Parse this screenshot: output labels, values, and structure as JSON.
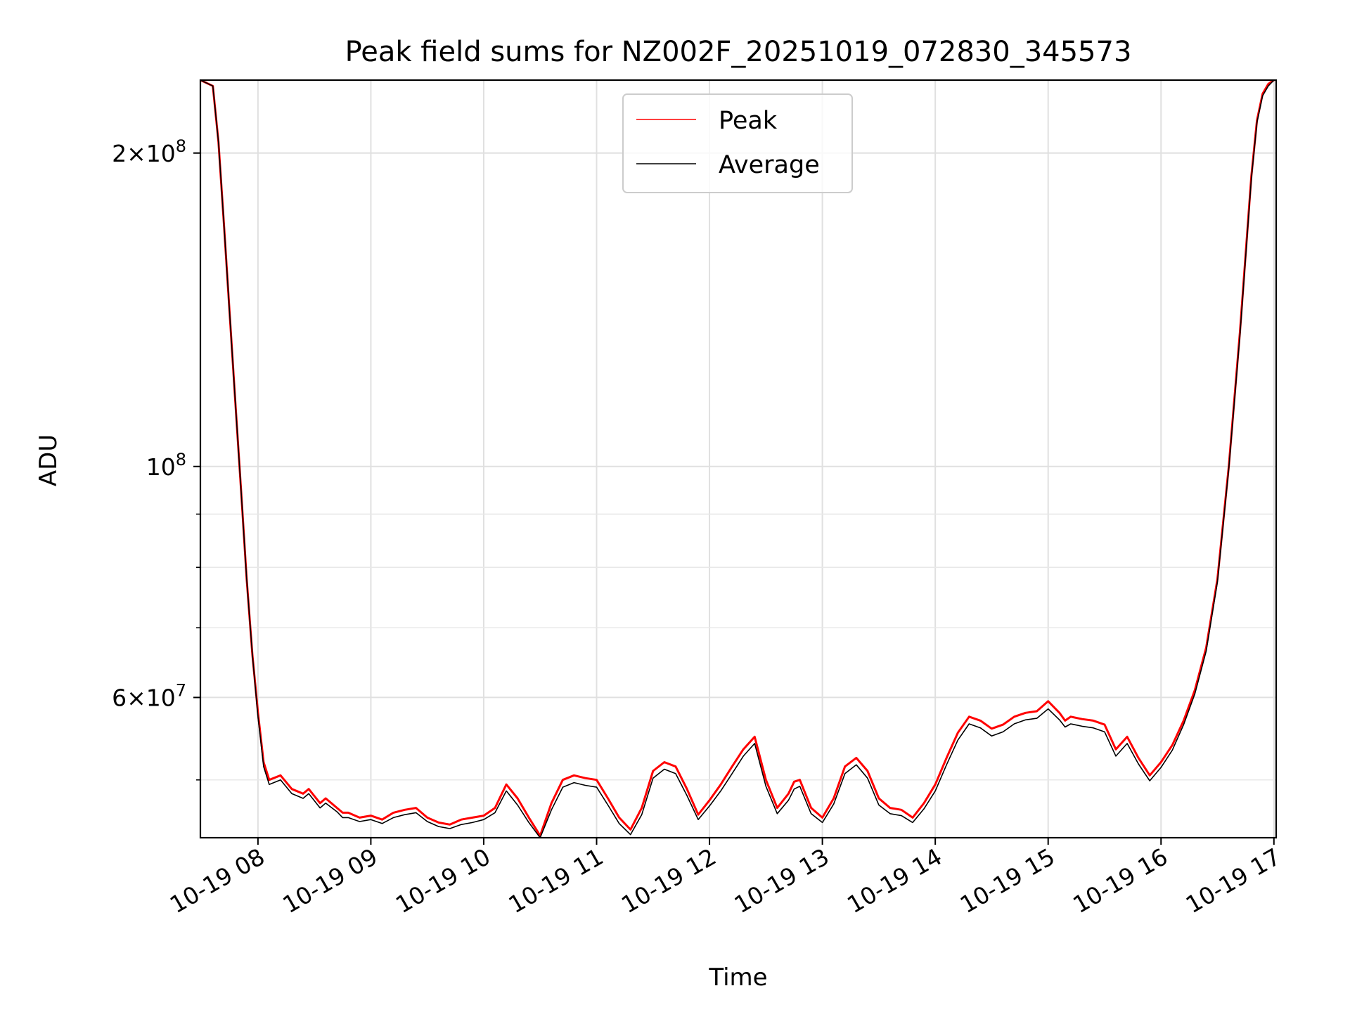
{
  "chart_data": {
    "type": "line",
    "title": "Peak field sums for NZ002F_20251019_072830_345573",
    "xlabel": "Time",
    "ylabel": "ADU",
    "y_scale": "log",
    "ylim": [
      44000000,
      235000000
    ],
    "xlim_hours": [
      7.49,
      17.02
    ],
    "grid": true,
    "legend_position": "top-center",
    "x_ticks": [
      {
        "hour": 8,
        "label": "10-19 08"
      },
      {
        "hour": 9,
        "label": "10-19 09"
      },
      {
        "hour": 10,
        "label": "10-19 10"
      },
      {
        "hour": 11,
        "label": "10-19 11"
      },
      {
        "hour": 12,
        "label": "10-19 12"
      },
      {
        "hour": 13,
        "label": "10-19 13"
      },
      {
        "hour": 14,
        "label": "10-19 14"
      },
      {
        "hour": 15,
        "label": "10-19 15"
      },
      {
        "hour": 16,
        "label": "10-19 16"
      },
      {
        "hour": 17,
        "label": "10-19 17"
      }
    ],
    "y_major_ticks": [
      {
        "value": 60000000,
        "base": "6",
        "exp": "7"
      },
      {
        "value": 100000000,
        "base": "",
        "exp": "8"
      },
      {
        "value": 200000000,
        "base": "2",
        "exp": "8"
      }
    ],
    "y_minor_ticks": [
      50000000,
      70000000,
      80000000,
      90000000
    ],
    "series": [
      {
        "name": "Peak",
        "color": "#ff0000",
        "x_hours": [
          7.49,
          7.6,
          7.65,
          7.7,
          7.75,
          7.8,
          7.85,
          7.9,
          7.95,
          8.0,
          8.05,
          8.1,
          8.2,
          8.3,
          8.4,
          8.45,
          8.55,
          8.6,
          8.7,
          8.75,
          8.8,
          8.9,
          9.0,
          9.1,
          9.2,
          9.3,
          9.4,
          9.5,
          9.6,
          9.7,
          9.8,
          9.9,
          10.0,
          10.1,
          10.2,
          10.3,
          10.4,
          10.5,
          10.6,
          10.7,
          10.8,
          10.9,
          11.0,
          11.1,
          11.2,
          11.3,
          11.4,
          11.5,
          11.6,
          11.7,
          11.8,
          11.9,
          12.0,
          12.1,
          12.2,
          12.3,
          12.4,
          12.5,
          12.6,
          12.7,
          12.75,
          12.8,
          12.9,
          13.0,
          13.1,
          13.2,
          13.3,
          13.4,
          13.5,
          13.6,
          13.7,
          13.8,
          13.9,
          14.0,
          14.1,
          14.2,
          14.3,
          14.4,
          14.5,
          14.6,
          14.7,
          14.8,
          14.9,
          15.0,
          15.1,
          15.15,
          15.2,
          15.3,
          15.4,
          15.5,
          15.6,
          15.7,
          15.8,
          15.9,
          16.0,
          16.1,
          16.2,
          16.3,
          16.4,
          16.5,
          16.6,
          16.7,
          16.8,
          16.85,
          16.9,
          16.95,
          17.0
        ],
        "values": [
          235000000,
          232000000,
          205000000,
          170000000,
          140000000,
          115000000,
          95000000,
          78000000,
          66000000,
          58000000,
          52000000,
          50000000,
          50500000,
          49000000,
          48500000,
          49000000,
          47500000,
          48000000,
          47000000,
          46500000,
          46500000,
          46000000,
          46200000,
          45800000,
          46500000,
          46800000,
          47000000,
          46000000,
          45500000,
          45300000,
          45800000,
          46000000,
          46200000,
          47000000,
          49500000,
          48000000,
          46000000,
          44200000,
          47500000,
          50000000,
          50500000,
          50200000,
          50000000,
          48000000,
          46000000,
          44800000,
          47000000,
          51000000,
          52000000,
          51500000,
          49000000,
          46300000,
          47800000,
          49500000,
          51500000,
          53500000,
          55000000,
          50000000,
          47000000,
          48500000,
          49800000,
          50000000,
          47000000,
          46000000,
          48000000,
          51500000,
          52500000,
          51000000,
          48000000,
          47000000,
          46800000,
          46000000,
          47500000,
          49500000,
          52500000,
          55500000,
          57500000,
          57000000,
          56000000,
          56500000,
          57500000,
          58000000,
          58200000,
          59500000,
          58000000,
          57000000,
          57500000,
          57200000,
          57000000,
          56500000,
          53500000,
          55000000,
          52500000,
          50500000,
          52000000,
          54000000,
          57000000,
          61000000,
          67000000,
          78000000,
          100000000,
          135000000,
          190000000,
          215000000,
          228000000,
          233000000,
          235000000
        ]
      },
      {
        "name": "Average",
        "color": "#000000",
        "x_hours": [
          7.49,
          7.6,
          7.65,
          7.7,
          7.75,
          7.8,
          7.85,
          7.9,
          7.95,
          8.0,
          8.05,
          8.1,
          8.2,
          8.3,
          8.4,
          8.45,
          8.55,
          8.6,
          8.7,
          8.75,
          8.8,
          8.9,
          9.0,
          9.1,
          9.2,
          9.3,
          9.4,
          9.5,
          9.6,
          9.7,
          9.8,
          9.9,
          10.0,
          10.1,
          10.2,
          10.3,
          10.4,
          10.5,
          10.6,
          10.7,
          10.8,
          10.9,
          11.0,
          11.1,
          11.2,
          11.3,
          11.4,
          11.5,
          11.6,
          11.7,
          11.8,
          11.9,
          12.0,
          12.1,
          12.2,
          12.3,
          12.4,
          12.5,
          12.6,
          12.7,
          12.75,
          12.8,
          12.9,
          13.0,
          13.1,
          13.2,
          13.3,
          13.4,
          13.5,
          13.6,
          13.7,
          13.8,
          13.9,
          14.0,
          14.1,
          14.2,
          14.3,
          14.4,
          14.5,
          14.6,
          14.7,
          14.8,
          14.9,
          15.0,
          15.1,
          15.15,
          15.2,
          15.3,
          15.4,
          15.5,
          15.6,
          15.7,
          15.8,
          15.9,
          16.0,
          16.1,
          16.2,
          16.3,
          16.4,
          16.5,
          16.6,
          16.7,
          16.8,
          16.85,
          16.9,
          16.95,
          17.0
        ],
        "values": [
          235000000,
          232000000,
          205000000,
          170000000,
          140000000,
          115000000,
          95000000,
          78000000,
          66000000,
          57500000,
          51500000,
          49500000,
          50000000,
          48500000,
          48000000,
          48500000,
          47000000,
          47500000,
          46600000,
          46000000,
          46000000,
          45600000,
          45800000,
          45400000,
          46000000,
          46300000,
          46500000,
          45600000,
          45100000,
          44900000,
          45300000,
          45500000,
          45800000,
          46500000,
          48800000,
          47300000,
          45500000,
          44000000,
          46800000,
          49200000,
          49700000,
          49400000,
          49200000,
          47300000,
          45400000,
          44300000,
          46300000,
          50200000,
          51200000,
          50700000,
          48300000,
          45800000,
          47200000,
          48800000,
          50700000,
          52700000,
          54200000,
          49300000,
          46400000,
          47800000,
          49000000,
          49300000,
          46400000,
          45500000,
          47400000,
          50700000,
          51700000,
          50200000,
          47300000,
          46400000,
          46200000,
          45500000,
          46900000,
          48800000,
          51700000,
          54600000,
          56600000,
          56100000,
          55100000,
          55600000,
          56600000,
          57100000,
          57300000,
          58500000,
          57100000,
          56200000,
          56600000,
          56300000,
          56100000,
          55600000,
          52700000,
          54200000,
          51800000,
          49900000,
          51400000,
          53400000,
          56500000,
          60500000,
          66500000,
          77500000,
          99500000,
          134000000,
          189000000,
          214000000,
          227000000,
          232000000,
          235000000
        ]
      }
    ]
  }
}
